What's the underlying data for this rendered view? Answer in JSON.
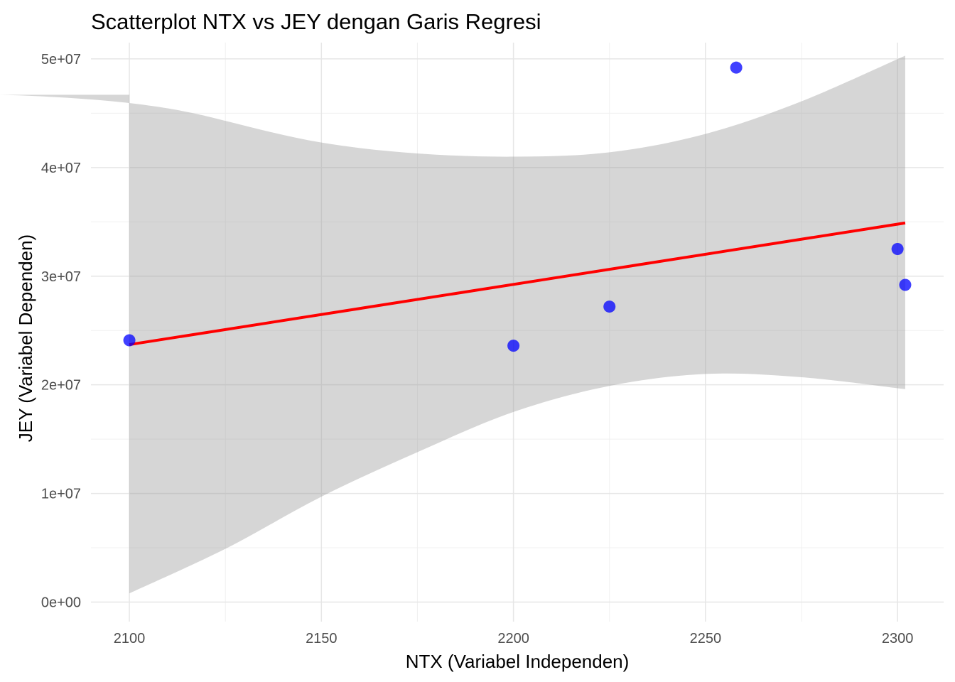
{
  "chart_data": {
    "type": "scatter",
    "title": "Scatterplot NTX vs JEY dengan Garis Regresi",
    "xlabel": "NTX (Variabel Independen)",
    "ylabel": "JEY (Variabel Dependen)",
    "xlim": [
      2090,
      2312
    ],
    "ylim": [
      -1800000,
      51500000
    ],
    "x_ticks": [
      2100,
      2150,
      2200,
      2250,
      2300
    ],
    "x_tick_labels": [
      "2100",
      "2150",
      "2200",
      "2250",
      "2300"
    ],
    "y_ticks": [
      0,
      10000000,
      20000000,
      30000000,
      40000000,
      50000000
    ],
    "y_tick_labels": [
      "0e+00",
      "1e+07",
      "2e+07",
      "3e+07",
      "4e+07",
      "5e+07"
    ],
    "grid": true,
    "points": {
      "x": [
        2100,
        2200,
        2225,
        2258,
        2300,
        2302
      ],
      "y": [
        24100000,
        23600000,
        27200000,
        49200000,
        32500000,
        29200000
      ],
      "color": "#0000ff"
    },
    "regression": {
      "x": [
        2100,
        2302
      ],
      "y": [
        23700000,
        34900000
      ],
      "color": "#ff0000"
    },
    "confidence_band": {
      "color": "#999999",
      "x": [
        2100,
        2125,
        2150,
        2175,
        2200,
        2225,
        2250,
        2275,
        2302
      ],
      "upper": [
        46700000,
        44300000,
        42300000,
        41300000,
        41000000,
        41400000,
        43100000,
        46100000,
        50300000
      ],
      "lower": [
        800000,
        4900000,
        9700000,
        13800000,
        17500000,
        19900000,
        21000000,
        20700000,
        19600000
      ]
    }
  }
}
